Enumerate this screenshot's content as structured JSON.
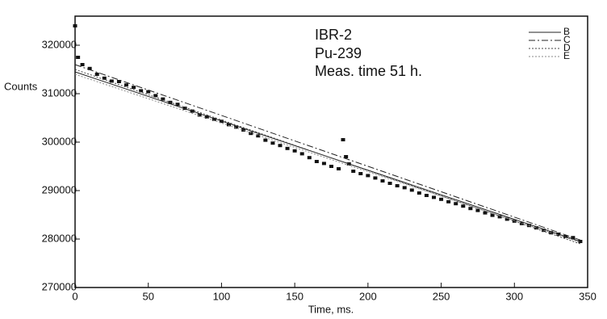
{
  "chart_data": {
    "type": "scatter",
    "x_label": "Time, ms.",
    "y_label": "Counts",
    "annotations": [
      "IBR-2",
      "Pu-239",
      "Meas. time 51 h."
    ],
    "xlim": [
      0,
      350
    ],
    "ylim": [
      270000,
      326000
    ],
    "xticks": [
      0,
      50,
      100,
      150,
      200,
      250,
      300,
      350
    ],
    "yticks": [
      270000,
      280000,
      290000,
      300000,
      310000,
      320000
    ],
    "series": [
      {
        "mode": "markers",
        "color": "#111111",
        "x": [
          0,
          2,
          5,
          10,
          15,
          20,
          25,
          30,
          35,
          40,
          45,
          50,
          55,
          60,
          65,
          70,
          75,
          80,
          85,
          90,
          95,
          100,
          105,
          110,
          115,
          120,
          125,
          130,
          135,
          140,
          145,
          150,
          155,
          160,
          165,
          170,
          175,
          180,
          183,
          185,
          187,
          190,
          195,
          200,
          205,
          210,
          215,
          220,
          225,
          230,
          235,
          240,
          245,
          250,
          255,
          260,
          265,
          270,
          275,
          280,
          285,
          290,
          295,
          300,
          305,
          310,
          315,
          320,
          325,
          330,
          335,
          340,
          345
        ],
        "values": [
          324000,
          317500,
          316000,
          315200,
          314000,
          313200,
          312600,
          312500,
          311800,
          311300,
          310600,
          310400,
          309600,
          308900,
          308200,
          307800,
          307000,
          306400,
          305600,
          305200,
          304700,
          304300,
          303600,
          303100,
          302500,
          301800,
          301300,
          300400,
          299800,
          299300,
          298700,
          298200,
          297600,
          296800,
          296000,
          295600,
          295000,
          294500,
          300500,
          297000,
          295500,
          294000,
          293500,
          293100,
          292600,
          292000,
          291500,
          291000,
          290600,
          290100,
          289500,
          289000,
          288600,
          288200,
          287700,
          287300,
          286800,
          286300,
          285900,
          285400,
          284900,
          284600,
          284100,
          283700,
          283200,
          282800,
          282300,
          281800,
          281300,
          281000,
          280500,
          280300,
          279500
        ]
      },
      {
        "name": "B",
        "mode": "lines",
        "line_style": "solid",
        "color": "#222222",
        "x": [
          0,
          345
        ],
        "values": [
          314500,
          279500
        ]
      },
      {
        "name": "C",
        "mode": "lines",
        "line_style": "dashdot",
        "color": "#222222",
        "x": [
          0,
          345
        ],
        "values": [
          316000,
          279800
        ]
      },
      {
        "name": "D",
        "mode": "lines",
        "line_style": "dotted",
        "color": "#444444",
        "x": [
          0,
          345
        ],
        "values": [
          315000,
          279000
        ]
      },
      {
        "name": "E",
        "mode": "lines",
        "line_style": "dotted",
        "color": "#888888",
        "x": [
          0,
          345
        ],
        "values": [
          314000,
          279300
        ]
      }
    ]
  }
}
